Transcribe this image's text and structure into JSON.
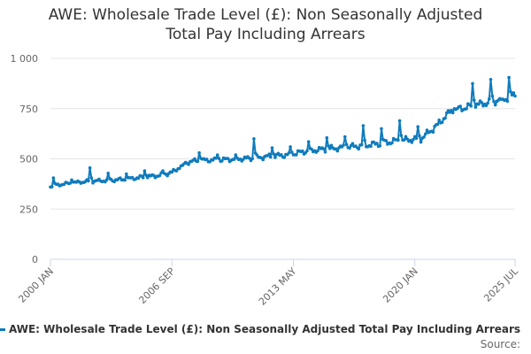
{
  "chart_data": {
    "type": "line",
    "title_lines": [
      "AWE: Wholesale Trade Level (£): Non Seasonally Adjusted",
      "Total Pay Including Arrears"
    ],
    "x_start": "2000-01",
    "x_end": "2025-07",
    "x_tick_labels": [
      "2000 JAN",
      "2006 SEP",
      "2013 MAY",
      "2020 JAN",
      "2025 JUL"
    ],
    "x_tick_months": [
      "2000-01",
      "2006-09",
      "2013-05",
      "2020-01",
      "2025-07"
    ],
    "ylim": [
      0,
      1000
    ],
    "y_ticks": [
      0,
      250,
      500,
      750,
      1000
    ],
    "y_tick_labels": [
      "0",
      "250",
      "500",
      "750",
      "1 000"
    ],
    "grid": "horizontal",
    "legend_position": "bottom",
    "series": [
      {
        "name": "AWE: Wholesale Trade Level (£): Non Seasonally Adjusted Total Pay Including Arrears",
        "color": "#0f7bbd",
        "anchors": [
          [
            "2000-01",
            365
          ],
          [
            "2001-01",
            378
          ],
          [
            "2002-01",
            388
          ],
          [
            "2003-01",
            392
          ],
          [
            "2004-01",
            398
          ],
          [
            "2005-01",
            408
          ],
          [
            "2006-01",
            418
          ],
          [
            "2006-09",
            432
          ],
          [
            "2007-06",
            480
          ],
          [
            "2008-01",
            492
          ],
          [
            "2009-01",
            495
          ],
          [
            "2010-01",
            498
          ],
          [
            "2011-01",
            503
          ],
          [
            "2012-01",
            512
          ],
          [
            "2013-01",
            520
          ],
          [
            "2013-05",
            525
          ],
          [
            "2014-01",
            538
          ],
          [
            "2015-01",
            548
          ],
          [
            "2016-01",
            556
          ],
          [
            "2017-01",
            565
          ],
          [
            "2018-01",
            575
          ],
          [
            "2019-01",
            590
          ],
          [
            "2020-01",
            598
          ],
          [
            "2020-05",
            600
          ],
          [
            "2021-01",
            650
          ],
          [
            "2022-01",
            740
          ],
          [
            "2023-01",
            760
          ],
          [
            "2024-01",
            780
          ],
          [
            "2025-01",
            800
          ],
          [
            "2025-07",
            820
          ]
        ],
        "spikes": [
          [
            "2000-03",
            405
          ],
          [
            "2001-03",
            395
          ],
          [
            "2002-03",
            455
          ],
          [
            "2003-03",
            428
          ],
          [
            "2004-03",
            425
          ],
          [
            "2005-03",
            440
          ],
          [
            "2006-03",
            440
          ],
          [
            "2007-03",
            465
          ],
          [
            "2008-03",
            530
          ],
          [
            "2009-03",
            520
          ],
          [
            "2010-03",
            520
          ],
          [
            "2011-03",
            600
          ],
          [
            "2012-03",
            555
          ],
          [
            "2013-03",
            560
          ],
          [
            "2014-03",
            585
          ],
          [
            "2015-03",
            605
          ],
          [
            "2016-03",
            610
          ],
          [
            "2017-03",
            665
          ],
          [
            "2018-03",
            650
          ],
          [
            "2019-03",
            690
          ],
          [
            "2020-03",
            660
          ],
          [
            "2021-03",
            670
          ],
          [
            "2022-03",
            750
          ],
          [
            "2023-03",
            875
          ],
          [
            "2024-03",
            895
          ],
          [
            "2024-09",
            800
          ],
          [
            "2025-03",
            905
          ]
        ]
      }
    ],
    "legend_text": "AWE: Wholesale Trade Level (£): Non Seasonally Adjusted Total Pay Including Arrears",
    "source_label": "Source:"
  }
}
